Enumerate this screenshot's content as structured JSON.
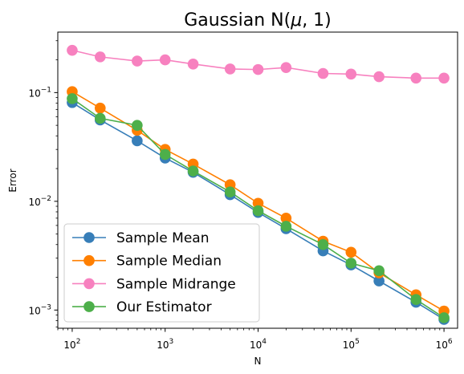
{
  "chart_data": {
    "type": "line",
    "title": "Gaussian N(μ, 1)",
    "title_base": "Gaussian N(",
    "title_mu": "μ",
    "title_rest": ", 1)",
    "xlabel": "N",
    "ylabel": "Error",
    "xscale": "log",
    "yscale": "log",
    "xlim": [
      70,
      1400000
    ],
    "ylim": [
      0.00068,
      0.36
    ],
    "grid": false,
    "legend_position": "lower-left",
    "x": [
      100,
      200,
      500,
      1000,
      2000,
      5000,
      10000,
      20000,
      50000,
      100000,
      200000,
      500000,
      1000000
    ],
    "x_ticks": [
      {
        "value": 100,
        "base": "10",
        "exp": "2"
      },
      {
        "value": 1000,
        "base": "10",
        "exp": "3"
      },
      {
        "value": 10000,
        "base": "10",
        "exp": "4"
      },
      {
        "value": 100000,
        "base": "10",
        "exp": "5"
      },
      {
        "value": 1000000,
        "base": "10",
        "exp": "6"
      }
    ],
    "y_ticks": [
      {
        "value": 0.1,
        "base": "10",
        "exp": "−1"
      },
      {
        "value": 0.01,
        "base": "10",
        "exp": "−2"
      },
      {
        "value": 0.001,
        "base": "10",
        "exp": "−3"
      }
    ],
    "series": [
      {
        "name": "Sample Mean",
        "color": "#377eb8",
        "values": [
          0.081,
          0.056,
          0.036,
          0.025,
          0.0185,
          0.0115,
          0.0079,
          0.0056,
          0.0035,
          0.0026,
          0.00185,
          0.00118,
          0.00082
        ]
      },
      {
        "name": "Sample Median",
        "color": "#ff7f00",
        "values": [
          0.102,
          0.072,
          0.045,
          0.03,
          0.022,
          0.0142,
          0.0096,
          0.007,
          0.0043,
          0.0034,
          0.0022,
          0.00138,
          0.00098
        ]
      },
      {
        "name": "Sample Midrange",
        "color": "#f781bf",
        "values": [
          0.245,
          0.213,
          0.195,
          0.2,
          0.183,
          0.165,
          0.163,
          0.17,
          0.15,
          0.148,
          0.14,
          0.136,
          0.136
        ]
      },
      {
        "name": "Our Estimator",
        "color": "#4daf4a",
        "values": [
          0.088,
          0.058,
          0.05,
          0.027,
          0.019,
          0.0122,
          0.0082,
          0.0059,
          0.004,
          0.0027,
          0.0023,
          0.00125,
          0.00085
        ]
      }
    ]
  }
}
